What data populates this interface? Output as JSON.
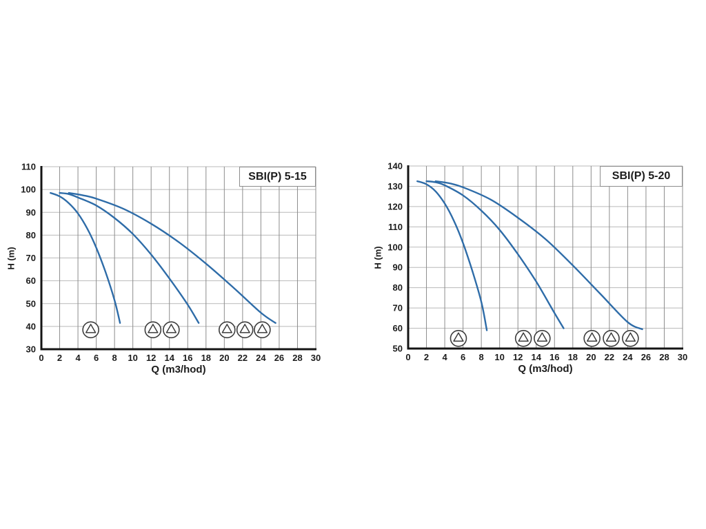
{
  "page": {
    "background": "#ffffff"
  },
  "colors": {
    "curve": "#2e6ca8",
    "grid_vertical": "#8c8c8c",
    "grid_horizontal": "#b9b9b9",
    "axis": "#141414",
    "text": "#1c1c1c",
    "title_border": "#8c8c8c",
    "pump_icon_stroke": "#3c3c3c"
  },
  "chart_data": [
    {
      "type": "line",
      "title": "SBI(P) 5-15",
      "xlabel": "Q (m3/hod)",
      "ylabel": "H (m)",
      "xlim": [
        0,
        30
      ],
      "ylim": [
        30,
        110
      ],
      "x_ticks": [
        0,
        2,
        4,
        6,
        8,
        10,
        12,
        14,
        16,
        18,
        20,
        22,
        24,
        26,
        28,
        30
      ],
      "y_ticks": [
        30,
        40,
        50,
        60,
        70,
        80,
        90,
        100,
        110
      ],
      "grid": true,
      "legend": "none",
      "series": [
        {
          "name": "1-pump",
          "points": [
            [
              1,
              98.5
            ],
            [
              2,
              97
            ],
            [
              3,
              94
            ],
            [
              4,
              89.5
            ],
            [
              5,
              83
            ],
            [
              6,
              74.5
            ],
            [
              7,
              64
            ],
            [
              8,
              51.5
            ],
            [
              8.6,
              41.5
            ]
          ]
        },
        {
          "name": "2-pumps",
          "points": [
            [
              2,
              98.5
            ],
            [
              3,
              98
            ],
            [
              4,
              96.5
            ],
            [
              6,
              93
            ],
            [
              8,
              87.5
            ],
            [
              10,
              80.5
            ],
            [
              12,
              71.5
            ],
            [
              14,
              61
            ],
            [
              16,
              49.5
            ],
            [
              17.2,
              41.5
            ]
          ]
        },
        {
          "name": "3-pumps",
          "points": [
            [
              3,
              98.5
            ],
            [
              4.5,
              97.5
            ],
            [
              6,
              96
            ],
            [
              9,
              91.5
            ],
            [
              12,
              85
            ],
            [
              15,
              77
            ],
            [
              18,
              67.5
            ],
            [
              21,
              57
            ],
            [
              24,
              46
            ],
            [
              25.6,
              41.5
            ]
          ]
        }
      ],
      "pump_icon_groups": [
        {
          "count": 1,
          "q": [
            5.4
          ],
          "h": 38.5
        },
        {
          "count": 2,
          "q": [
            12.2,
            14.2
          ],
          "h": 38.5
        },
        {
          "count": 3,
          "q": [
            20.3,
            22.25,
            24.15
          ],
          "h": 38.5
        }
      ]
    },
    {
      "type": "line",
      "title": "SBI(P) 5-20",
      "xlabel": "Q (m3/hod)",
      "ylabel": "H (m)",
      "xlim": [
        0,
        30
      ],
      "ylim": [
        50,
        140
      ],
      "x_ticks": [
        0,
        2,
        4,
        6,
        8,
        10,
        12,
        14,
        16,
        18,
        20,
        22,
        24,
        26,
        28,
        30
      ],
      "y_ticks": [
        50,
        60,
        70,
        80,
        90,
        100,
        110,
        120,
        130,
        140
      ],
      "grid": true,
      "legend": "none",
      "series": [
        {
          "name": "1-pump",
          "points": [
            [
              1,
              132.5
            ],
            [
              2,
              131
            ],
            [
              3,
              127.5
            ],
            [
              4,
              121.5
            ],
            [
              5,
              113
            ],
            [
              6,
              102
            ],
            [
              7,
              88.5
            ],
            [
              8,
              73
            ],
            [
              8.6,
              59
            ]
          ]
        },
        {
          "name": "2-pumps",
          "points": [
            [
              2,
              132.5
            ],
            [
              3,
              132
            ],
            [
              4,
              130.5
            ],
            [
              6,
              125.5
            ],
            [
              8,
              118
            ],
            [
              10,
              108.5
            ],
            [
              12,
              96.5
            ],
            [
              14,
              83
            ],
            [
              16,
              67.5
            ],
            [
              17,
              60
            ]
          ]
        },
        {
          "name": "3-pumps",
          "points": [
            [
              3,
              132.5
            ],
            [
              4.5,
              131.5
            ],
            [
              6,
              129.5
            ],
            [
              9,
              123.5
            ],
            [
              12,
              114.5
            ],
            [
              15,
              104
            ],
            [
              18,
              91
            ],
            [
              21,
              77
            ],
            [
              24,
              63
            ],
            [
              25.6,
              59.5
            ]
          ]
        }
      ],
      "pump_icon_groups": [
        {
          "count": 1,
          "q": [
            5.5
          ],
          "h": 55
        },
        {
          "count": 2,
          "q": [
            12.6,
            14.65
          ],
          "h": 55
        },
        {
          "count": 3,
          "q": [
            20.1,
            22.2,
            24.3
          ],
          "h": 55
        }
      ]
    }
  ]
}
